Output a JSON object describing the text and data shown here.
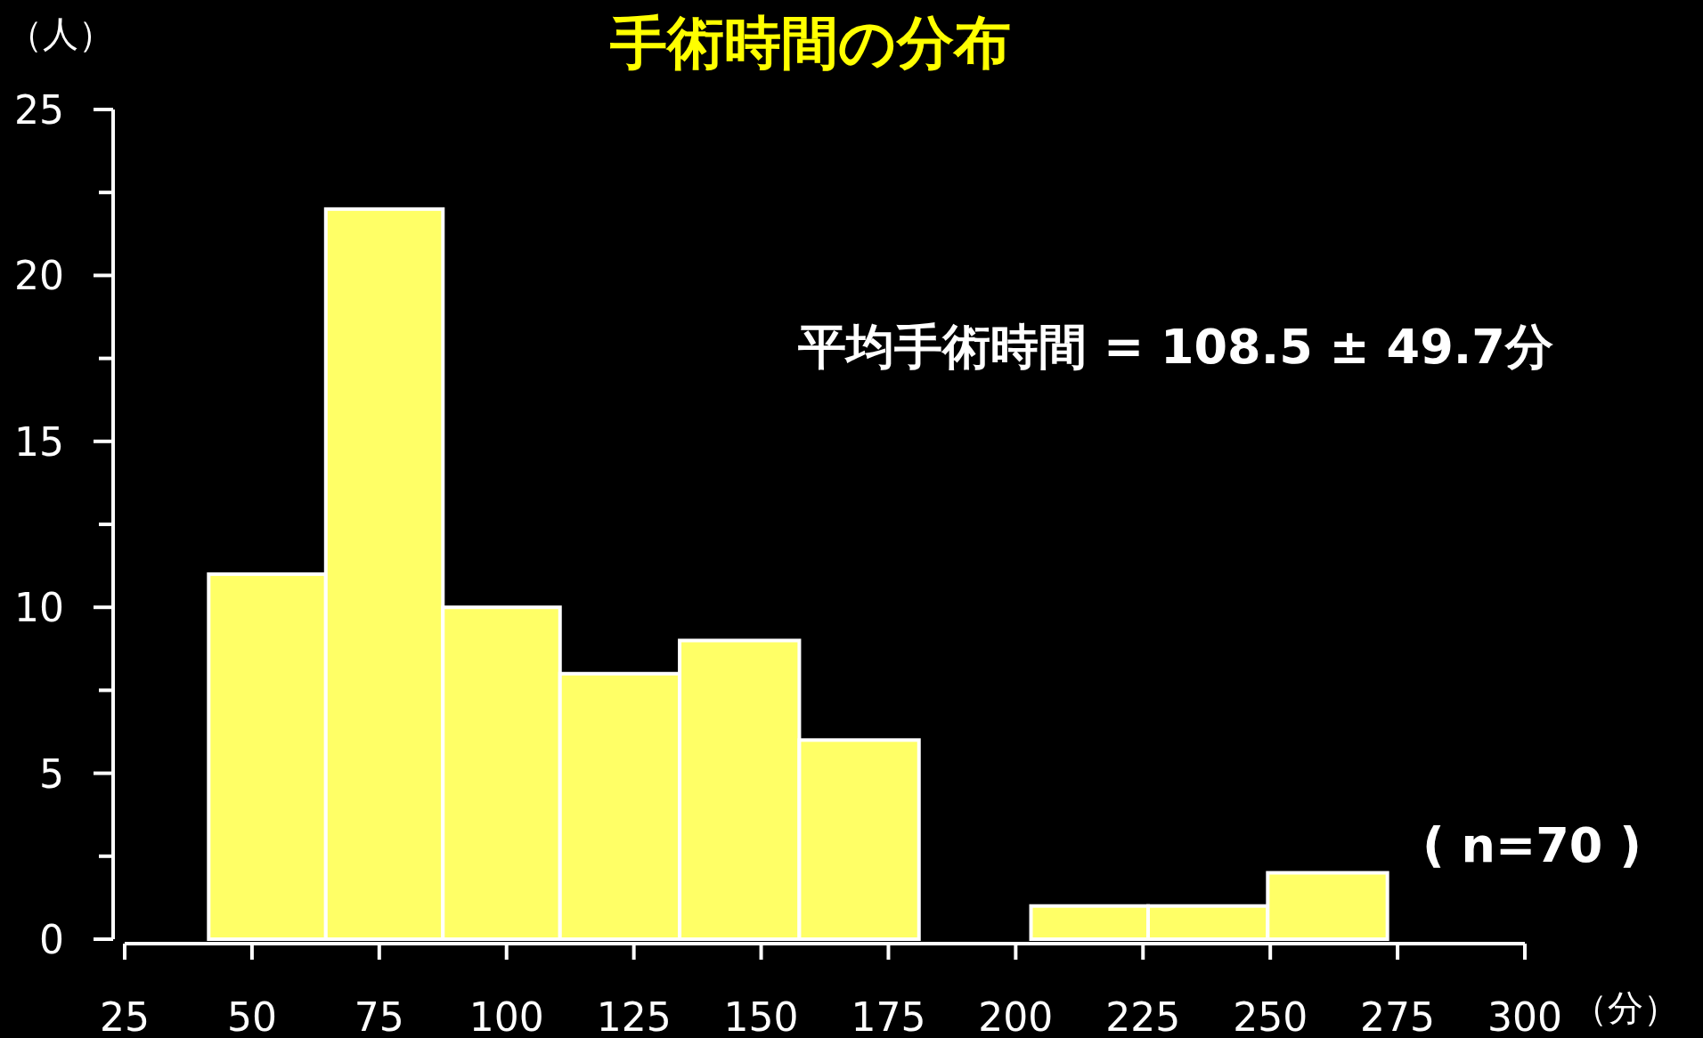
{
  "chart_data": {
    "type": "histogram",
    "title": "手術時間の分布",
    "xlabel": "（分）",
    "ylabel": "（人）",
    "bins": [
      41.5,
      64.5,
      87.5,
      110.5,
      134,
      157.5,
      181,
      203,
      226,
      249.5,
      273
    ],
    "values": [
      11,
      22,
      10,
      8,
      9,
      6,
      0,
      1,
      1,
      2
    ],
    "color": "#ffff66",
    "xlim": [
      25,
      300
    ],
    "xticks": [
      25,
      50,
      75,
      100,
      125,
      150,
      175,
      200,
      225,
      250,
      275,
      300
    ],
    "ylim": [
      0,
      25
    ],
    "yticks": [
      0,
      5,
      10,
      15,
      20,
      25
    ],
    "grid": false,
    "annotations": [
      "平均手術時間 = 108.5 ± 49.7分",
      "( n=70 )"
    ]
  }
}
